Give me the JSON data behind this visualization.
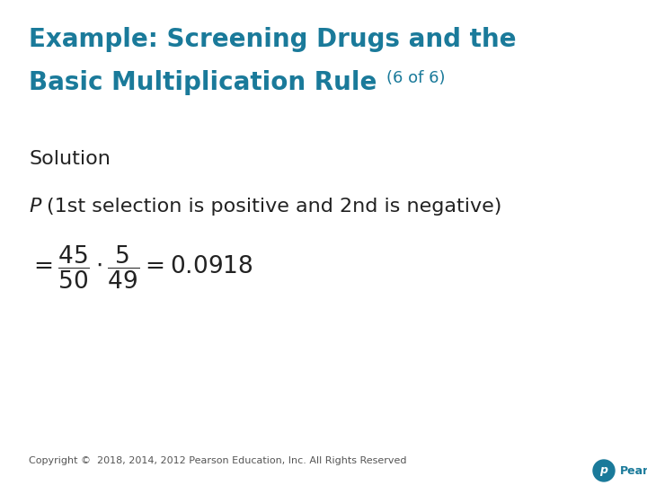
{
  "bg_color": "#ffffff",
  "title_line1": "Example: Screening Drugs and the",
  "title_line2": "Basic Multiplication Rule",
  "title_suffix": "(6 of 6)",
  "title_color": "#1a7a9a",
  "title_fontsize": 20,
  "title_suffix_fontsize": 13,
  "solution_label": "Solution",
  "solution_fontsize": 16,
  "solution_color": "#222222",
  "prob_p": "P",
  "prob_rest": "(1st selection is positive and 2nd is negative)",
  "prob_fontsize": 16,
  "prob_color": "#222222",
  "formula_color": "#222222",
  "formula_fontsize": 19,
  "copyright_text": "Copyright ©  2018, 2014, 2012 Pearson Education, Inc. All Rights Reserved",
  "copyright_fontsize": 8,
  "copyright_color": "#555555",
  "pearson_color": "#1a7a9a",
  "pearson_text": "Pearson"
}
